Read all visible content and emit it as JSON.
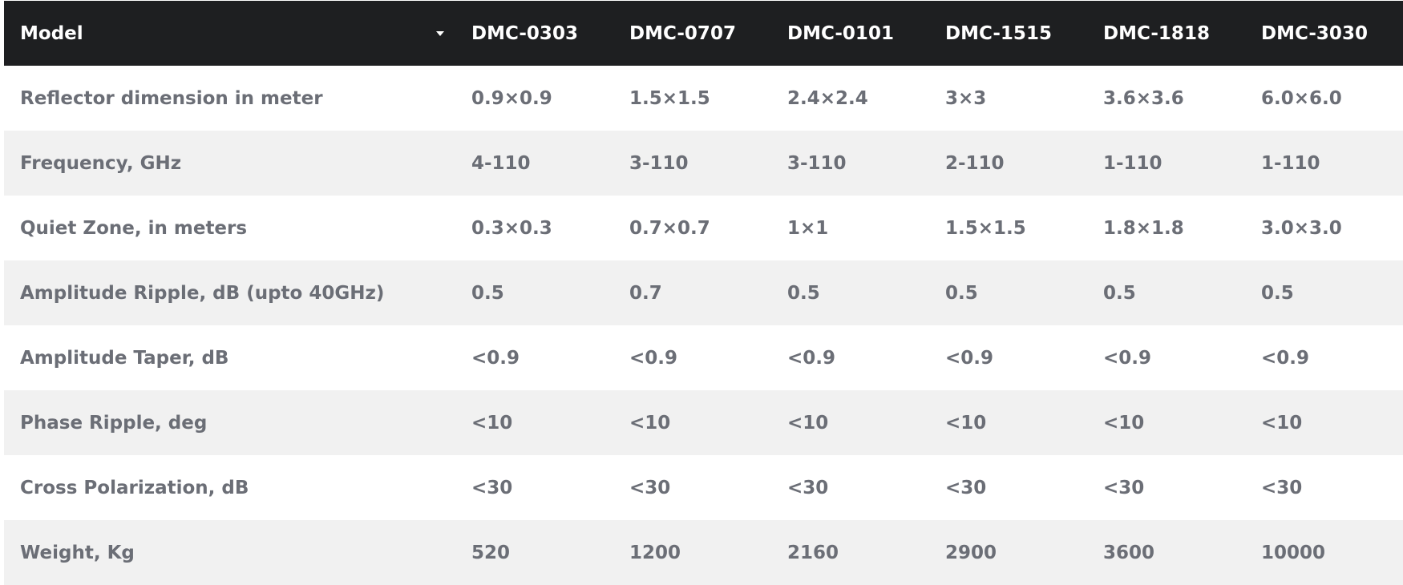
{
  "table": {
    "header": {
      "model_label": "Model",
      "models": [
        "DMC-0303",
        "DMC-0707",
        "DMC-0101",
        "DMC-1515",
        "DMC-1818",
        "DMC-3030"
      ],
      "sort_icon": "caret-down-icon"
    },
    "rows": [
      {
        "label": "Reflector dimension in meter",
        "values": [
          "0.9×0.9",
          "1.5×1.5",
          "2.4×2.4",
          "3×3",
          "3.6×3.6",
          "6.0×6.0"
        ]
      },
      {
        "label": "Frequency, GHz",
        "values": [
          "4-110",
          "3-110",
          "3-110",
          "2-110",
          "1-110",
          "1-110"
        ]
      },
      {
        "label": "Quiet Zone, in meters",
        "values": [
          "0.3×0.3",
          "0.7×0.7",
          "1×1",
          "1.5×1.5",
          "1.8×1.8",
          "3.0×3.0"
        ]
      },
      {
        "label": "Amplitude Ripple, dB (upto 40GHz)",
        "values": [
          "0.5",
          "0.7",
          "0.5",
          "0.5",
          "0.5",
          "0.5"
        ]
      },
      {
        "label": "Amplitude Taper, dB",
        "values": [
          "<0.9",
          "<0.9",
          "<0.9",
          "<0.9",
          "<0.9",
          "<0.9"
        ]
      },
      {
        "label": "Phase Ripple, deg",
        "values": [
          "<10",
          "<10",
          "<10",
          "<10",
          "<10",
          "<10"
        ]
      },
      {
        "label": "Cross Polarization, dB",
        "values": [
          "<30",
          "<30",
          "<30",
          "<30",
          "<30",
          "<30"
        ]
      },
      {
        "label": "Weight, Kg",
        "values": [
          "520",
          "1200",
          "2160",
          "2900",
          "3600",
          "10000"
        ]
      }
    ]
  },
  "colors": {
    "header_bg": "#1e1f21",
    "header_text": "#ffffff",
    "body_text": "#6b6e76",
    "alt_row_bg": "#f1f1f1"
  }
}
